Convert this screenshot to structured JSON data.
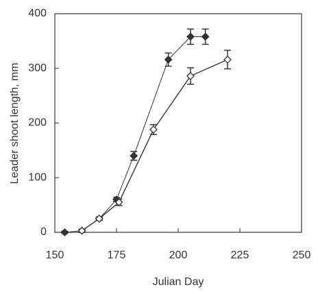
{
  "chart_data": {
    "type": "line",
    "x_label": "Julian Day",
    "y_label": "Leader shoot length, mm",
    "xlim": [
      150,
      250
    ],
    "xticks": [
      150,
      175,
      200,
      225,
      250
    ],
    "ylim": [
      0,
      400
    ],
    "yticks": [
      0,
      100,
      200,
      300,
      400
    ],
    "series": [
      {
        "marker": "filled",
        "color": "#333333",
        "x": [
          154,
          161,
          168,
          175,
          182,
          196,
          205,
          211
        ],
        "values": [
          0,
          3,
          25,
          60,
          140,
          316,
          358,
          358
        ],
        "errors": [
          2,
          3,
          3,
          4,
          8,
          12,
          14,
          14
        ]
      },
      {
        "marker": "open",
        "color": "#333333",
        "x": [
          161,
          168,
          176,
          190,
          205,
          220
        ],
        "values": [
          3,
          25,
          55,
          188,
          286,
          316
        ],
        "errors": [
          3,
          3,
          6,
          9,
          15,
          17
        ]
      }
    ]
  }
}
